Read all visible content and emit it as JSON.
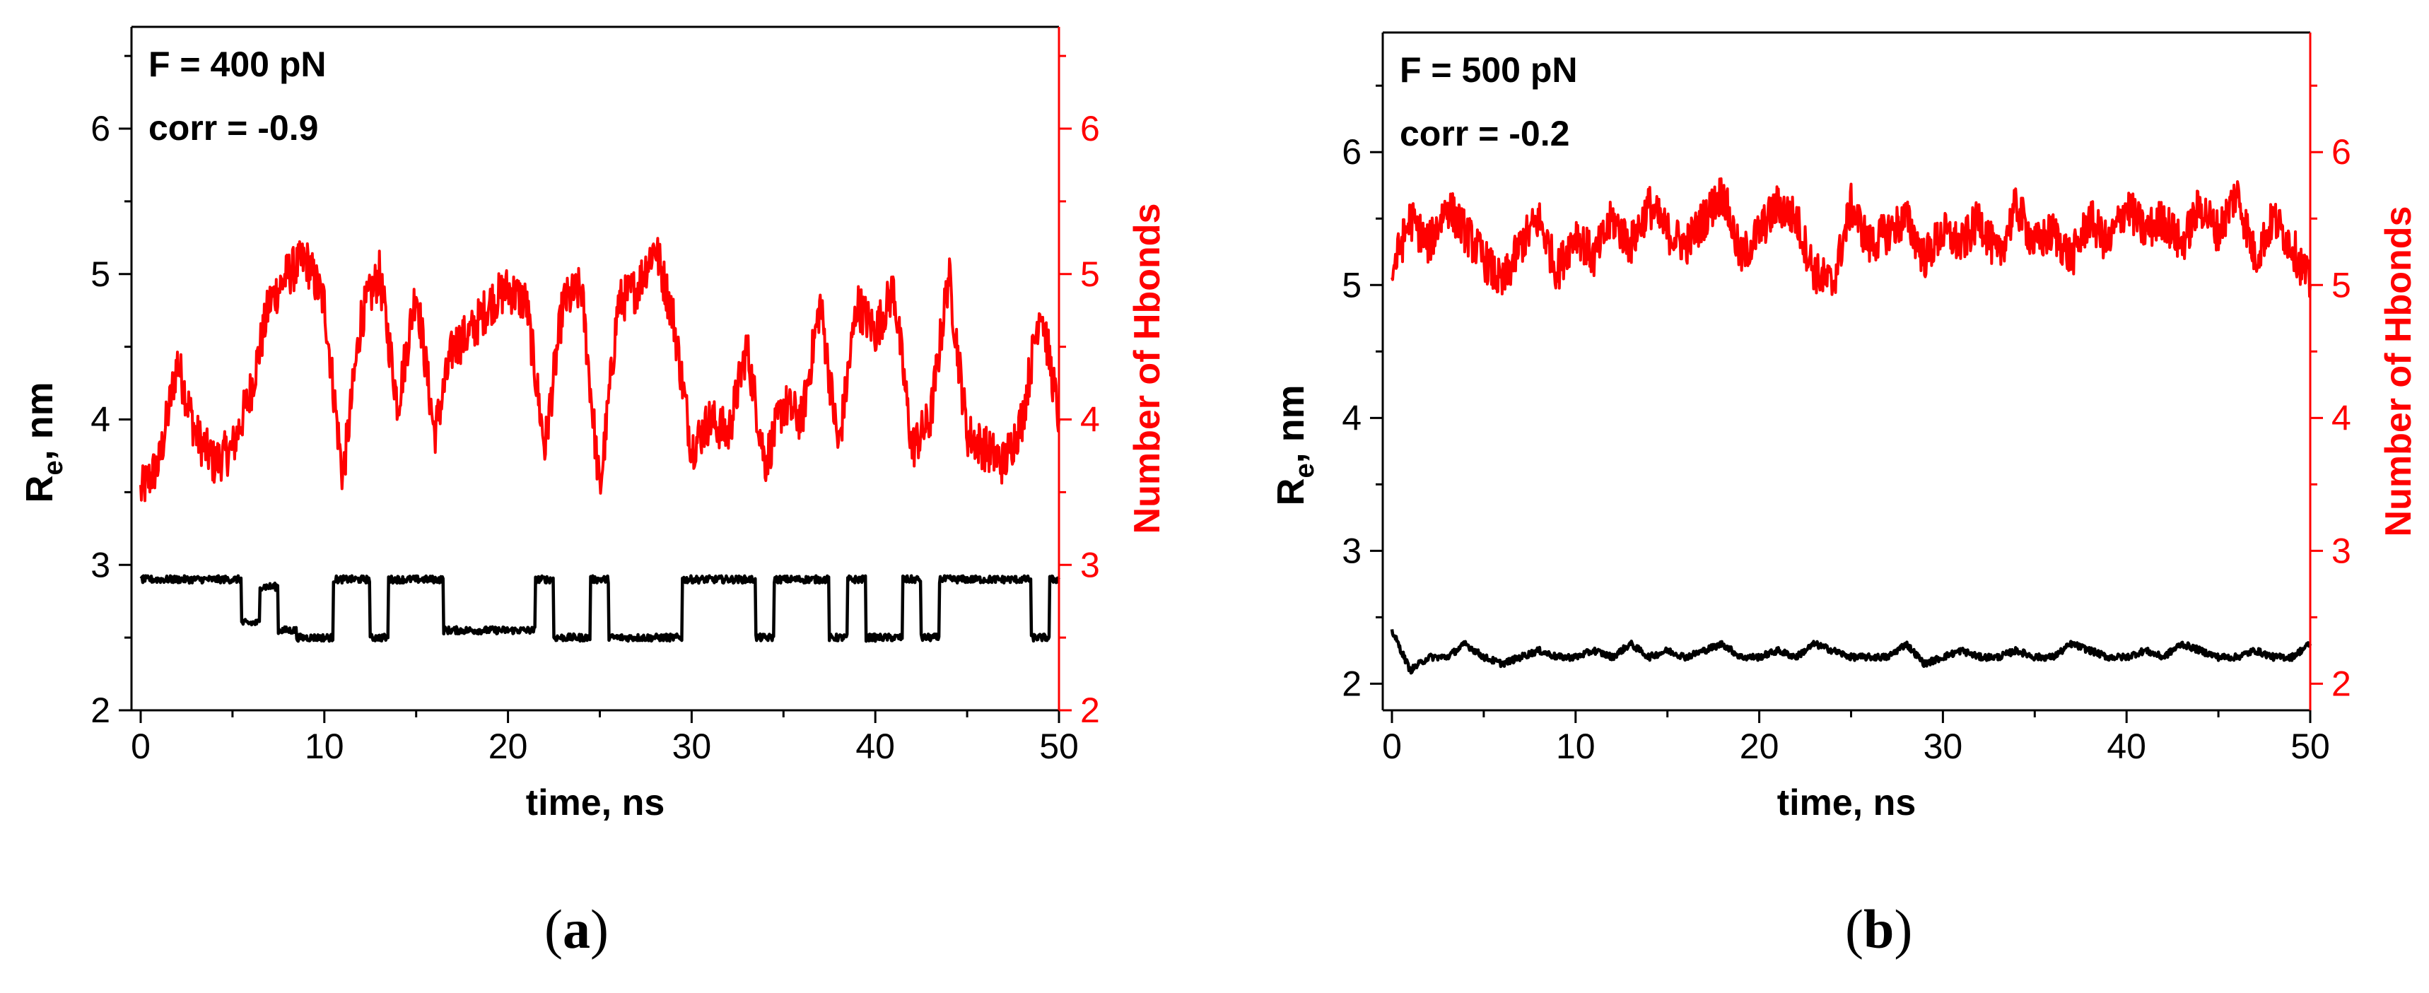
{
  "figure": {
    "panels": [
      {
        "label_letter": "a"
      },
      {
        "label_letter": "b"
      }
    ]
  },
  "colors": {
    "left_axis": "#000000",
    "right_axis": "#ff0000",
    "re_series": "#000000",
    "hbond_series": "#ff0000"
  },
  "chart_data": [
    {
      "type": "line",
      "annotation": [
        "F = 400 pN",
        "corr = -0.9"
      ],
      "xlabel": "time, ns",
      "ylabel_left": "Re, nm",
      "ylabel_left_main": "R",
      "ylabel_left_sub": "e",
      "ylabel_left_tail": ", nm",
      "ylabel_right": "Number of Hbonds",
      "xlim": [
        -0.5,
        50
      ],
      "ylim_left": [
        2,
        6.7
      ],
      "ylim_right": [
        2,
        6.7
      ],
      "x_ticks": [
        0,
        10,
        20,
        30,
        40,
        50
      ],
      "y_ticks_left": [
        2,
        3,
        4,
        5,
        6
      ],
      "y_ticks_right": [
        2,
        3,
        4,
        5,
        6
      ],
      "series": [
        {
          "name": "Number of Hbonds",
          "axis": "right",
          "x": [
            0,
            1,
            2,
            3,
            4,
            5,
            6,
            7,
            8,
            9,
            10,
            11,
            12,
            13,
            14,
            15,
            16,
            17,
            18,
            19,
            20,
            21,
            22,
            23,
            24,
            25,
            26,
            27,
            28,
            29,
            30,
            31,
            32,
            33,
            34,
            35,
            36,
            37,
            38,
            39,
            40,
            41,
            42,
            43,
            44,
            45,
            46,
            47,
            48,
            49,
            50
          ],
          "values": [
            3.5,
            3.7,
            4.4,
            3.9,
            3.7,
            3.8,
            4.2,
            4.8,
            5.0,
            5.1,
            4.8,
            3.6,
            4.7,
            5.0,
            4.1,
            4.9,
            3.9,
            4.5,
            4.6,
            4.8,
            4.9,
            4.8,
            3.8,
            4.8,
            4.9,
            3.5,
            4.8,
            4.9,
            5.2,
            4.7,
            3.8,
            4.0,
            3.9,
            4.5,
            3.7,
            4.1,
            4.0,
            4.8,
            3.8,
            4.8,
            4.6,
            4.9,
            3.8,
            4.0,
            5.0,
            3.9,
            3.8,
            3.7,
            4.0,
            4.8,
            4.0
          ]
        },
        {
          "name": "Re",
          "axis": "left",
          "x": [
            0,
            1,
            2,
            3,
            4,
            5,
            6,
            7,
            8,
            9,
            10,
            11,
            12,
            13,
            14,
            15,
            16,
            17,
            18,
            19,
            20,
            21,
            22,
            23,
            24,
            25,
            26,
            27,
            28,
            29,
            30,
            31,
            32,
            33,
            34,
            35,
            36,
            37,
            38,
            39,
            40,
            41,
            42,
            43,
            44,
            45,
            46,
            47,
            48,
            49,
            50
          ],
          "values": [
            2.9,
            2.9,
            2.9,
            2.9,
            2.9,
            2.9,
            2.6,
            2.85,
            2.55,
            2.5,
            2.5,
            2.9,
            2.9,
            2.5,
            2.9,
            2.9,
            2.9,
            2.55,
            2.55,
            2.55,
            2.55,
            2.55,
            2.9,
            2.5,
            2.5,
            2.9,
            2.5,
            2.5,
            2.5,
            2.5,
            2.9,
            2.9,
            2.9,
            2.9,
            2.5,
            2.9,
            2.9,
            2.9,
            2.5,
            2.9,
            2.5,
            2.5,
            2.9,
            2.5,
            2.9,
            2.9,
            2.9,
            2.9,
            2.9,
            2.5,
            2.9
          ]
        }
      ]
    },
    {
      "type": "line",
      "annotation": [
        "F = 500 pN",
        "corr = -0.2"
      ],
      "xlabel": "time, ns",
      "ylabel_left": "Re, nm",
      "ylabel_left_main": "R",
      "ylabel_left_sub": "e",
      "ylabel_left_tail": ", nm",
      "ylabel_right": "Number of Hbonds",
      "xlim": [
        -0.5,
        50
      ],
      "ylim_left": [
        1.8,
        6.9
      ],
      "ylim_right": [
        1.8,
        6.9
      ],
      "x_ticks": [
        0,
        10,
        20,
        30,
        40,
        50
      ],
      "y_ticks_left": [
        2,
        3,
        4,
        5,
        6
      ],
      "y_ticks_right": [
        2,
        3,
        4,
        5,
        6
      ],
      "series": [
        {
          "name": "Number of Hbonds",
          "axis": "right",
          "x": [
            0,
            1,
            2,
            3,
            4,
            5,
            6,
            7,
            8,
            9,
            10,
            11,
            12,
            13,
            14,
            15,
            16,
            17,
            18,
            19,
            20,
            21,
            22,
            23,
            24,
            25,
            26,
            27,
            28,
            29,
            30,
            31,
            32,
            33,
            34,
            35,
            36,
            37,
            38,
            39,
            40,
            41,
            42,
            43,
            44,
            45,
            46,
            47,
            48,
            49,
            50
          ],
          "values": [
            5.1,
            5.5,
            5.3,
            5.6,
            5.4,
            5.2,
            5.0,
            5.3,
            5.5,
            5.1,
            5.4,
            5.2,
            5.5,
            5.3,
            5.6,
            5.4,
            5.3,
            5.5,
            5.7,
            5.2,
            5.4,
            5.6,
            5.5,
            5.1,
            5.0,
            5.6,
            5.3,
            5.4,
            5.5,
            5.2,
            5.4,
            5.3,
            5.5,
            5.2,
            5.6,
            5.3,
            5.4,
            5.2,
            5.5,
            5.3,
            5.6,
            5.4,
            5.5,
            5.3,
            5.6,
            5.4,
            5.7,
            5.2,
            5.5,
            5.3,
            5.0
          ]
        },
        {
          "name": "Re",
          "axis": "left",
          "x": [
            0,
            1,
            2,
            3,
            4,
            5,
            6,
            7,
            8,
            9,
            10,
            11,
            12,
            13,
            14,
            15,
            16,
            17,
            18,
            19,
            20,
            21,
            22,
            23,
            24,
            25,
            26,
            27,
            28,
            29,
            30,
            31,
            32,
            33,
            34,
            35,
            36,
            37,
            38,
            39,
            40,
            41,
            42,
            43,
            44,
            45,
            46,
            47,
            48,
            49,
            50
          ],
          "values": [
            2.4,
            2.1,
            2.2,
            2.2,
            2.3,
            2.2,
            2.15,
            2.2,
            2.25,
            2.2,
            2.2,
            2.25,
            2.2,
            2.3,
            2.2,
            2.25,
            2.2,
            2.25,
            2.3,
            2.2,
            2.2,
            2.25,
            2.2,
            2.3,
            2.25,
            2.2,
            2.2,
            2.2,
            2.3,
            2.15,
            2.2,
            2.25,
            2.2,
            2.2,
            2.25,
            2.2,
            2.2,
            2.3,
            2.25,
            2.2,
            2.2,
            2.25,
            2.2,
            2.3,
            2.25,
            2.2,
            2.2,
            2.25,
            2.2,
            2.2,
            2.3
          ]
        }
      ]
    }
  ]
}
